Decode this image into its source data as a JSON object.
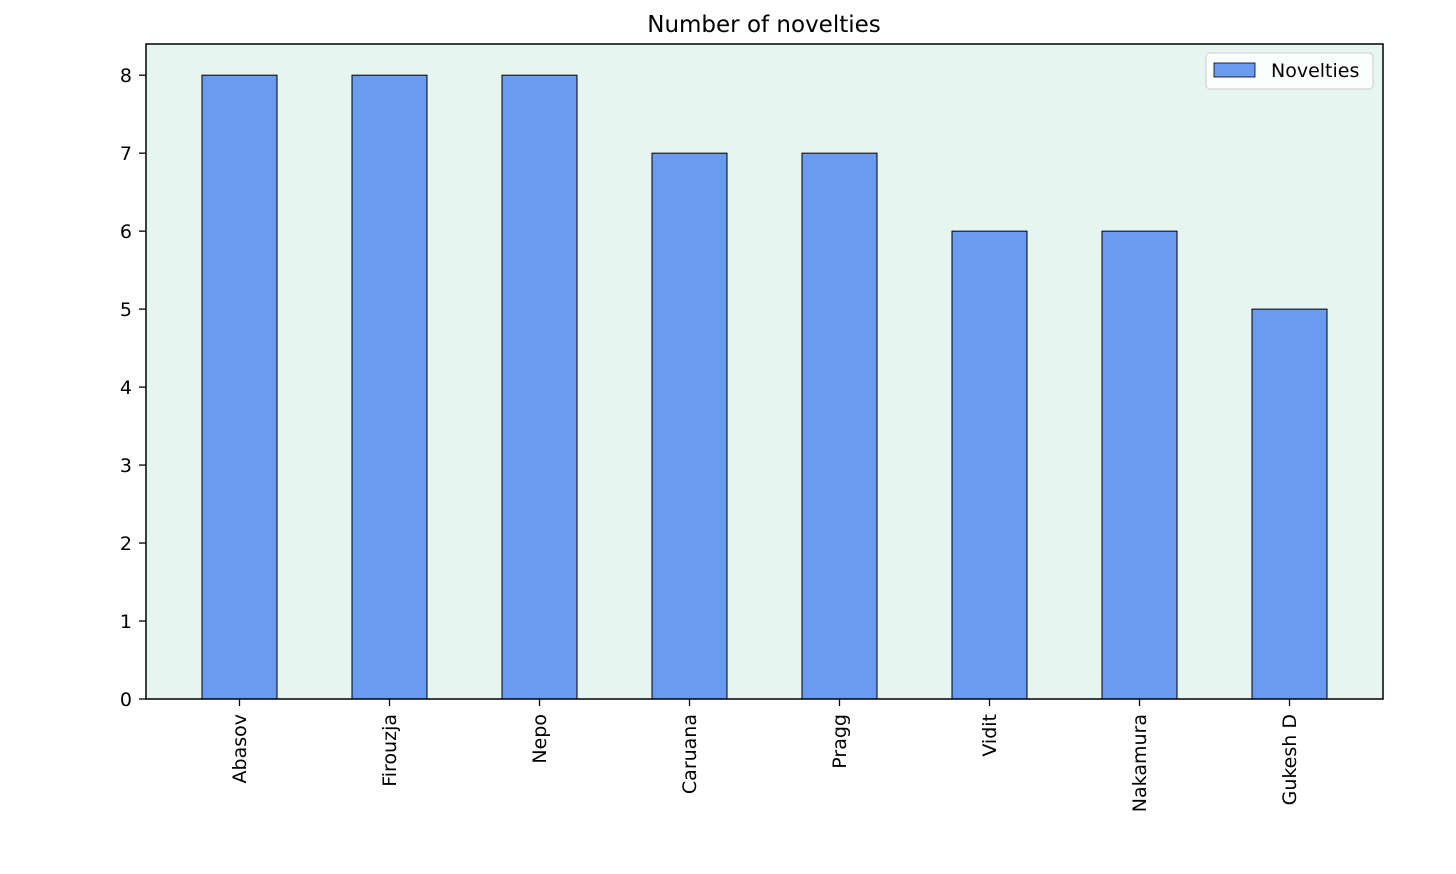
{
  "chart_data": {
    "type": "bar",
    "title": "Number of novelties",
    "xlabel": "",
    "ylabel": "",
    "categories": [
      "Abasov",
      "Firouzja",
      "Nepo",
      "Caruana",
      "Pragg",
      "Vidit",
      "Nakamura",
      "Gukesh D"
    ],
    "series": [
      {
        "name": "Novelties",
        "values": [
          8,
          8,
          8,
          7,
          7,
          6,
          6,
          5
        ],
        "color": "#6b9bee"
      }
    ],
    "ylim": [
      0,
      8.4
    ],
    "yticks": [
      0,
      1,
      2,
      3,
      4,
      5,
      6,
      7,
      8
    ],
    "grid": false,
    "legend_position": "top-right",
    "plot_background": "#e6f5ef",
    "bar_edge_color": "#000000",
    "x_tick_rotation": "vertical"
  }
}
